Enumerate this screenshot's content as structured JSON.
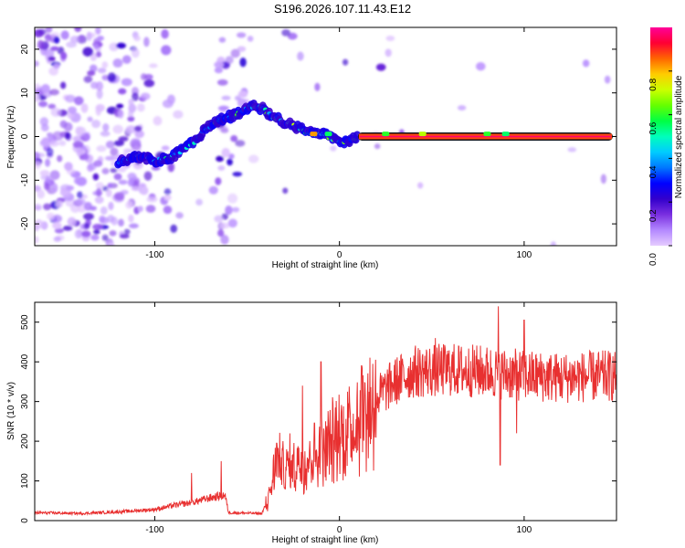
{
  "figure": {
    "title": "S196.2026.107.11.43.E12"
  },
  "chart_data": [
    {
      "type": "heatmap",
      "name": "spectrogram",
      "xlabel": "Height of straight line (km)",
      "ylabel": "Frequency (Hz)",
      "xlim": [
        -165,
        150
      ],
      "ylim": [
        -25,
        25
      ],
      "xticks": [
        -100,
        0,
        100
      ],
      "yticks": [
        -20,
        -10,
        0,
        10,
        20
      ],
      "colorbar": {
        "label": "Normalized spectral amplitude",
        "range": [
          0,
          1
        ],
        "ticks": [
          0.0,
          0.2,
          0.4,
          0.6,
          0.8
        ],
        "colormap": [
          "#e6ccff",
          "#b388ff",
          "#7a2fe0",
          "#3300cc",
          "#0000ff",
          "#0077ff",
          "#00ccff",
          "#00ffbb",
          "#00ff44",
          "#66ff00",
          "#ccff00",
          "#ffcc00",
          "#ff6600",
          "#ff0033",
          "#ff0099"
        ]
      },
      "ridge": [
        {
          "x": -120,
          "f": -6
        },
        {
          "x": -110,
          "f": -4.5
        },
        {
          "x": -100,
          "f": -5.5
        },
        {
          "x": -92,
          "f": -5
        },
        {
          "x": -85,
          "f": -3
        },
        {
          "x": -78,
          "f": -1
        },
        {
          "x": -72,
          "f": 2
        },
        {
          "x": -64,
          "f": 4
        },
        {
          "x": -56,
          "f": 5
        },
        {
          "x": -48,
          "f": 7
        },
        {
          "x": -42,
          "f": 6.5
        },
        {
          "x": -36,
          "f": 4.5
        },
        {
          "x": -28,
          "f": 3
        },
        {
          "x": -20,
          "f": 1.5
        },
        {
          "x": -14,
          "f": 0.5
        },
        {
          "x": -8,
          "f": 0.5
        },
        {
          "x": 0,
          "f": -1.5
        },
        {
          "x": 8,
          "f": -0.5
        },
        {
          "x": 10,
          "f": 0
        },
        {
          "x": 148,
          "f": 0
        }
      ],
      "flat_line": {
        "x_start": 10,
        "x_end": 148,
        "f": 0,
        "amplitude": 0.9
      }
    },
    {
      "type": "line",
      "name": "snr",
      "xlabel": "Height of straight line (km)",
      "ylabel": "SNR (10 * v/v)",
      "xlim": [
        -165,
        150
      ],
      "ylim": [
        0,
        550
      ],
      "xticks": [
        -100,
        0,
        100
      ],
      "yticks": [
        0,
        100,
        200,
        300,
        400,
        500
      ],
      "color": "#e83030",
      "trend": [
        {
          "x": -165,
          "y": 20
        },
        {
          "x": -140,
          "y": 18
        },
        {
          "x": -120,
          "y": 22
        },
        {
          "x": -100,
          "y": 28
        },
        {
          "x": -90,
          "y": 38
        },
        {
          "x": -80,
          "y": 45
        },
        {
          "x": -72,
          "y": 55
        },
        {
          "x": -62,
          "y": 65
        },
        {
          "x": -60,
          "y": 20
        },
        {
          "x": -42,
          "y": 18
        },
        {
          "x": -38,
          "y": 60
        },
        {
          "x": -34,
          "y": 150
        },
        {
          "x": -30,
          "y": 130
        },
        {
          "x": -20,
          "y": 150
        },
        {
          "x": -10,
          "y": 180
        },
        {
          "x": 0,
          "y": 210
        },
        {
          "x": 10,
          "y": 260
        },
        {
          "x": 20,
          "y": 310
        },
        {
          "x": 30,
          "y": 350
        },
        {
          "x": 40,
          "y": 375
        },
        {
          "x": 60,
          "y": 380
        },
        {
          "x": 80,
          "y": 375
        },
        {
          "x": 100,
          "y": 365
        },
        {
          "x": 120,
          "y": 360
        },
        {
          "x": 150,
          "y": 365
        }
      ],
      "noise_scale": 0.18,
      "spikes": [
        {
          "x": -80,
          "y": 120
        },
        {
          "x": -64,
          "y": 150
        },
        {
          "x": -34,
          "y": 195
        },
        {
          "x": -10,
          "y": 400
        },
        {
          "x": -20,
          "y": 340
        },
        {
          "x": 12,
          "y": 390
        },
        {
          "x": 52,
          "y": 460
        },
        {
          "x": 86,
          "y": 540
        },
        {
          "x": 87,
          "y": 140
        },
        {
          "x": 100,
          "y": 505
        },
        {
          "x": 96,
          "y": 220
        }
      ]
    }
  ]
}
